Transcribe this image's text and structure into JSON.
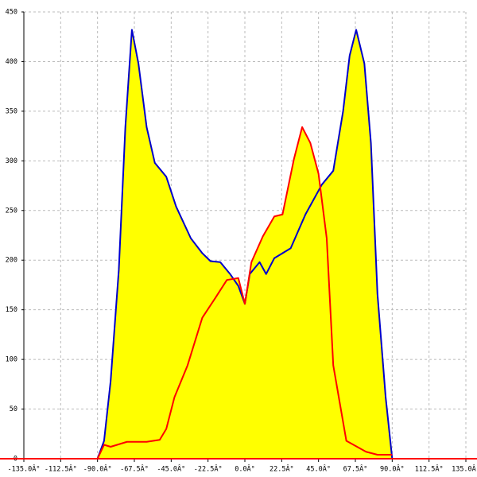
{
  "chart_data": {
    "type": "line",
    "xlim": [
      -135,
      135
    ],
    "ylim": [
      0,
      450
    ],
    "xticks": [
      {
        "value": -135,
        "label": "-135.0Â°"
      },
      {
        "value": -112.5,
        "label": "-112.5Â°"
      },
      {
        "value": -90,
        "label": "-90.0Â°"
      },
      {
        "value": -67.5,
        "label": "-67.5Â°"
      },
      {
        "value": -45,
        "label": "-45.0Â°"
      },
      {
        "value": -22.5,
        "label": "-22.5Â°"
      },
      {
        "value": 0,
        "label": "0.0Â°"
      },
      {
        "value": 22.5,
        "label": "22.5Â°"
      },
      {
        "value": 45,
        "label": "45.0Â°"
      },
      {
        "value": 67.5,
        "label": "67.5Â°"
      },
      {
        "value": 90,
        "label": "90.0Â°"
      },
      {
        "value": 112.5,
        "label": "112.5Â°"
      },
      {
        "value": 135,
        "label": "135.0Â°"
      }
    ],
    "yticks": [
      0,
      50,
      100,
      150,
      200,
      250,
      300,
      350,
      400,
      450
    ],
    "grid": true,
    "fill": "#ffff00",
    "axis_color": "#ff0000",
    "series": [
      {
        "color": "#0000cc",
        "x": [
          -90,
          -86,
          -82,
          -77,
          -73,
          -69,
          -65,
          -60,
          -55,
          -48,
          -42,
          -33,
          -26,
          -21,
          -15,
          -9,
          -4,
          0,
          3,
          9,
          13,
          18,
          28,
          37,
          47,
          54,
          60,
          64,
          68,
          73,
          77,
          81,
          86,
          90
        ],
        "values": [
          0,
          18,
          78,
          190,
          334,
          432,
          398,
          334,
          298,
          284,
          254,
          222,
          207,
          199,
          198,
          186,
          174,
          156,
          186,
          198,
          186,
          202,
          212,
          246,
          276,
          290,
          350,
          406,
          432,
          398,
          318,
          166,
          62,
          0
        ]
      },
      {
        "color": "#ff0000",
        "x": [
          -90,
          -86,
          -82,
          -72,
          -60,
          -52,
          -48,
          -43,
          -35,
          -26,
          -18,
          -11,
          -4,
          0,
          4,
          11,
          18,
          23,
          30,
          35,
          40,
          45,
          50,
          54,
          62,
          74,
          81,
          90
        ],
        "values": [
          0,
          14,
          12,
          17,
          17,
          19,
          30,
          62,
          94,
          142,
          162,
          180,
          182,
          156,
          198,
          224,
          244,
          246,
          302,
          334,
          318,
          287,
          222,
          94,
          18,
          7,
          4,
          4
        ]
      }
    ]
  }
}
